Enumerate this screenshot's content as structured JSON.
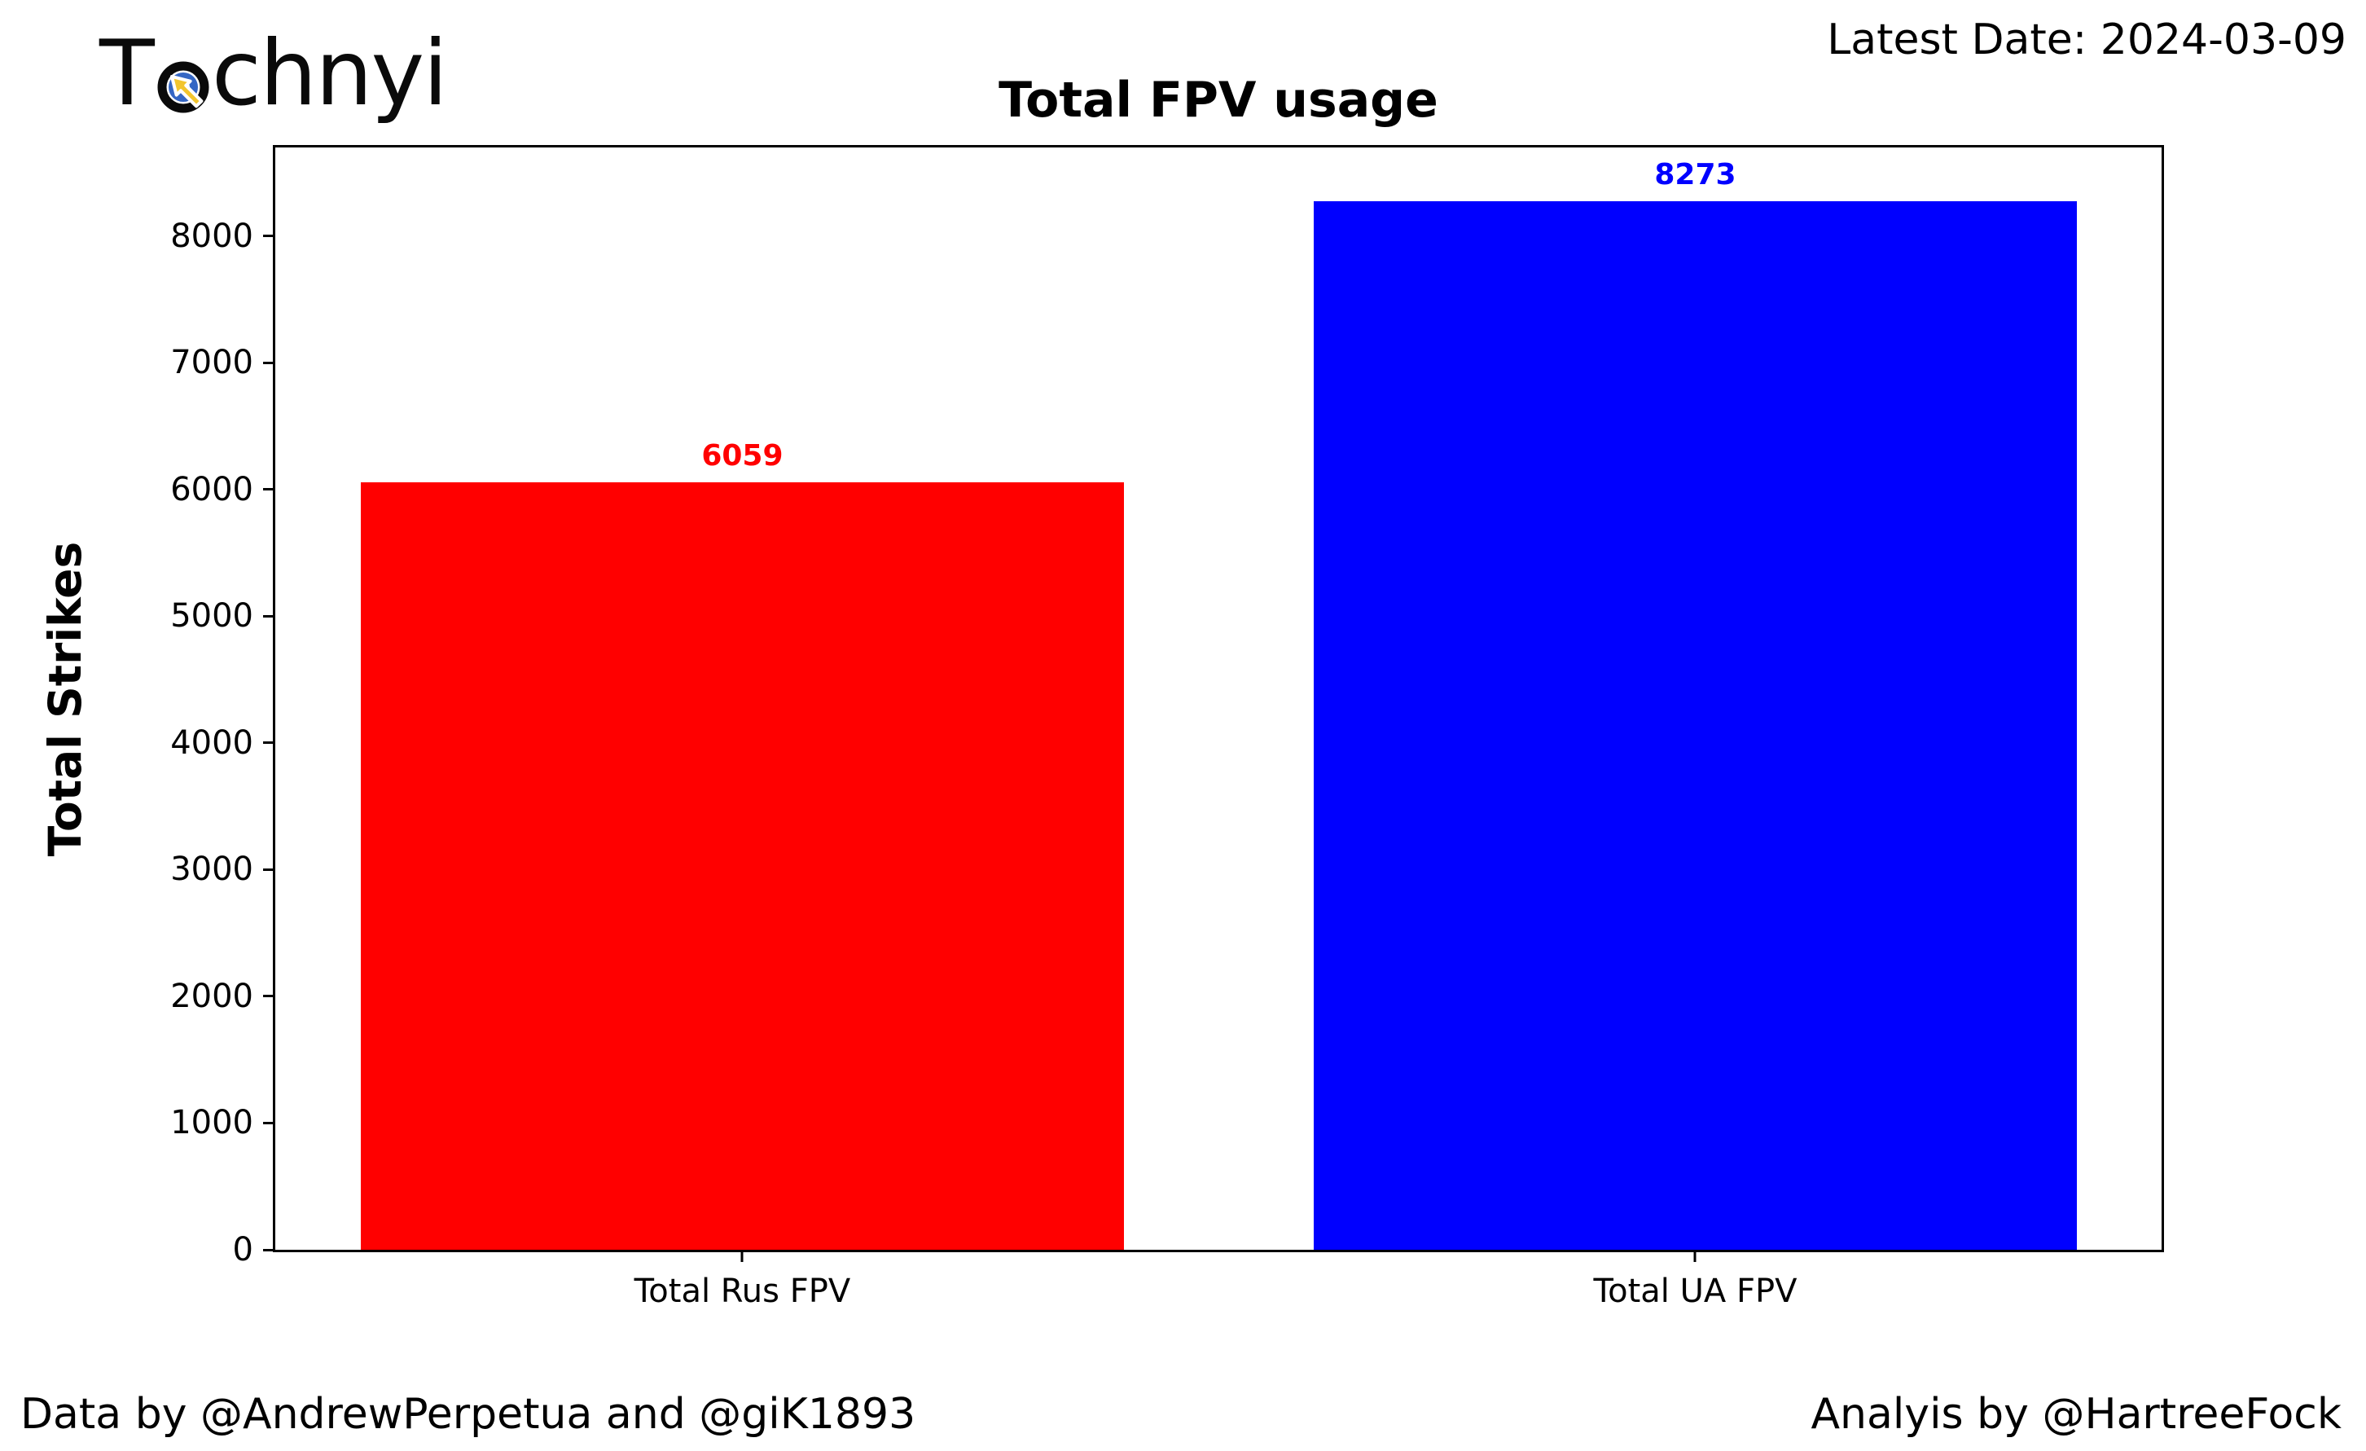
{
  "header": {
    "logo": {
      "text_before_icon": "T",
      "text_after_icon": "chnyi",
      "icon": "target-click-cursor-icon",
      "icon_colors": {
        "ring": "#0a0a0a",
        "inner_ring": "#3466c4",
        "cursor": "#f2c52e"
      }
    },
    "latest_date": "Latest Date: 2024-03-09"
  },
  "chart_data": {
    "type": "bar",
    "title": "Total FPV usage",
    "xlabel": "",
    "ylabel": "Total Strikes",
    "categories": [
      "Total Rus FPV",
      "Total UA FPV"
    ],
    "values": [
      6059,
      8273
    ],
    "value_labels": [
      "6059",
      "8273"
    ],
    "bar_colors": [
      "#ff0000",
      "#0000ff"
    ],
    "label_colors": [
      "#ff0000",
      "#0000ff"
    ],
    "ylim": [
      0,
      8700
    ],
    "yticks": [
      0,
      1000,
      2000,
      3000,
      4000,
      5000,
      6000,
      7000,
      8000
    ],
    "grid": "off",
    "legend": "none",
    "bar_centers_pct": [
      24.76,
      75.28
    ],
    "bar_width_pct": 40.48
  },
  "footer": {
    "credit_left": "Data by @AndrewPerpetua and @giK1893",
    "credit_right": "Analyis by @HartreeFock"
  }
}
